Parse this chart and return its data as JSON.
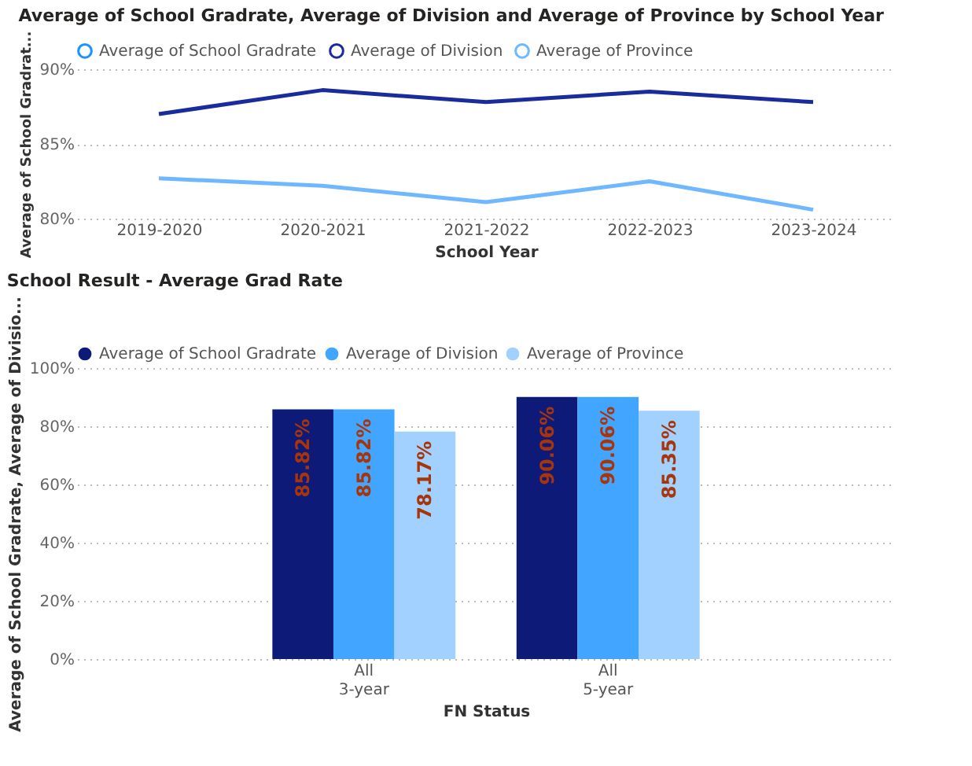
{
  "chart_data": [
    {
      "type": "line",
      "title": "Average of School Gradrate, Average of Division and Average of Province by School Year",
      "xlabel": "School Year",
      "ylabel": "Average of School Gradrat...",
      "categories": [
        "2019-2020",
        "2020-2021",
        "2021-2022",
        "2022-2023",
        "2023-2024"
      ],
      "series": [
        {
          "name": "Average of School Gradrate",
          "color": "#1e90ff",
          "values": [
            null,
            null,
            null,
            null,
            null
          ]
        },
        {
          "name": "Average of Division",
          "color": "#1a2b9c",
          "values": [
            87.0,
            88.6,
            87.8,
            88.5,
            87.8
          ]
        },
        {
          "name": "Average of Province",
          "color": "#6fb8ff",
          "values": [
            82.7,
            82.2,
            81.1,
            82.5,
            80.6
          ]
        }
      ],
      "ylim": [
        80,
        90
      ],
      "yticks": [
        {
          "value": 80,
          "label": "80%"
        },
        {
          "value": 85,
          "label": "85%"
        },
        {
          "value": 90,
          "label": "90%"
        }
      ],
      "grid": "y",
      "legend": "top left",
      "line_style": "solid"
    },
    {
      "type": "bar",
      "title": "School Result - Average Grad Rate",
      "xlabel": "FN Status",
      "ylabel": "Average of School Gradrate, Average of Divisio...",
      "categories": [
        "All\n3-year",
        "All\n5-year"
      ],
      "series": [
        {
          "name": "Average of School Gradrate",
          "color": "#0e1a78",
          "values": [
            85.82,
            90.06
          ],
          "value_labels": [
            "85.82%",
            "90.06%"
          ]
        },
        {
          "name": "Average of Division",
          "color": "#42a5ff",
          "values": [
            85.82,
            90.06
          ],
          "value_labels": [
            "85.82%",
            "90.06%"
          ]
        },
        {
          "name": "Average of Province",
          "color": "#a3d1ff",
          "values": [
            78.17,
            85.35
          ],
          "value_labels": [
            "78.17%",
            "85.35%"
          ]
        }
      ],
      "ylim": [
        0,
        100
      ],
      "yticks": [
        {
          "value": 0,
          "label": "0%"
        },
        {
          "value": 20,
          "label": "20%"
        },
        {
          "value": 40,
          "label": "40%"
        },
        {
          "value": 60,
          "label": "60%"
        },
        {
          "value": 80,
          "label": "80%"
        },
        {
          "value": 100,
          "label": "100%"
        }
      ],
      "grid": "y",
      "legend": "top left"
    }
  ]
}
